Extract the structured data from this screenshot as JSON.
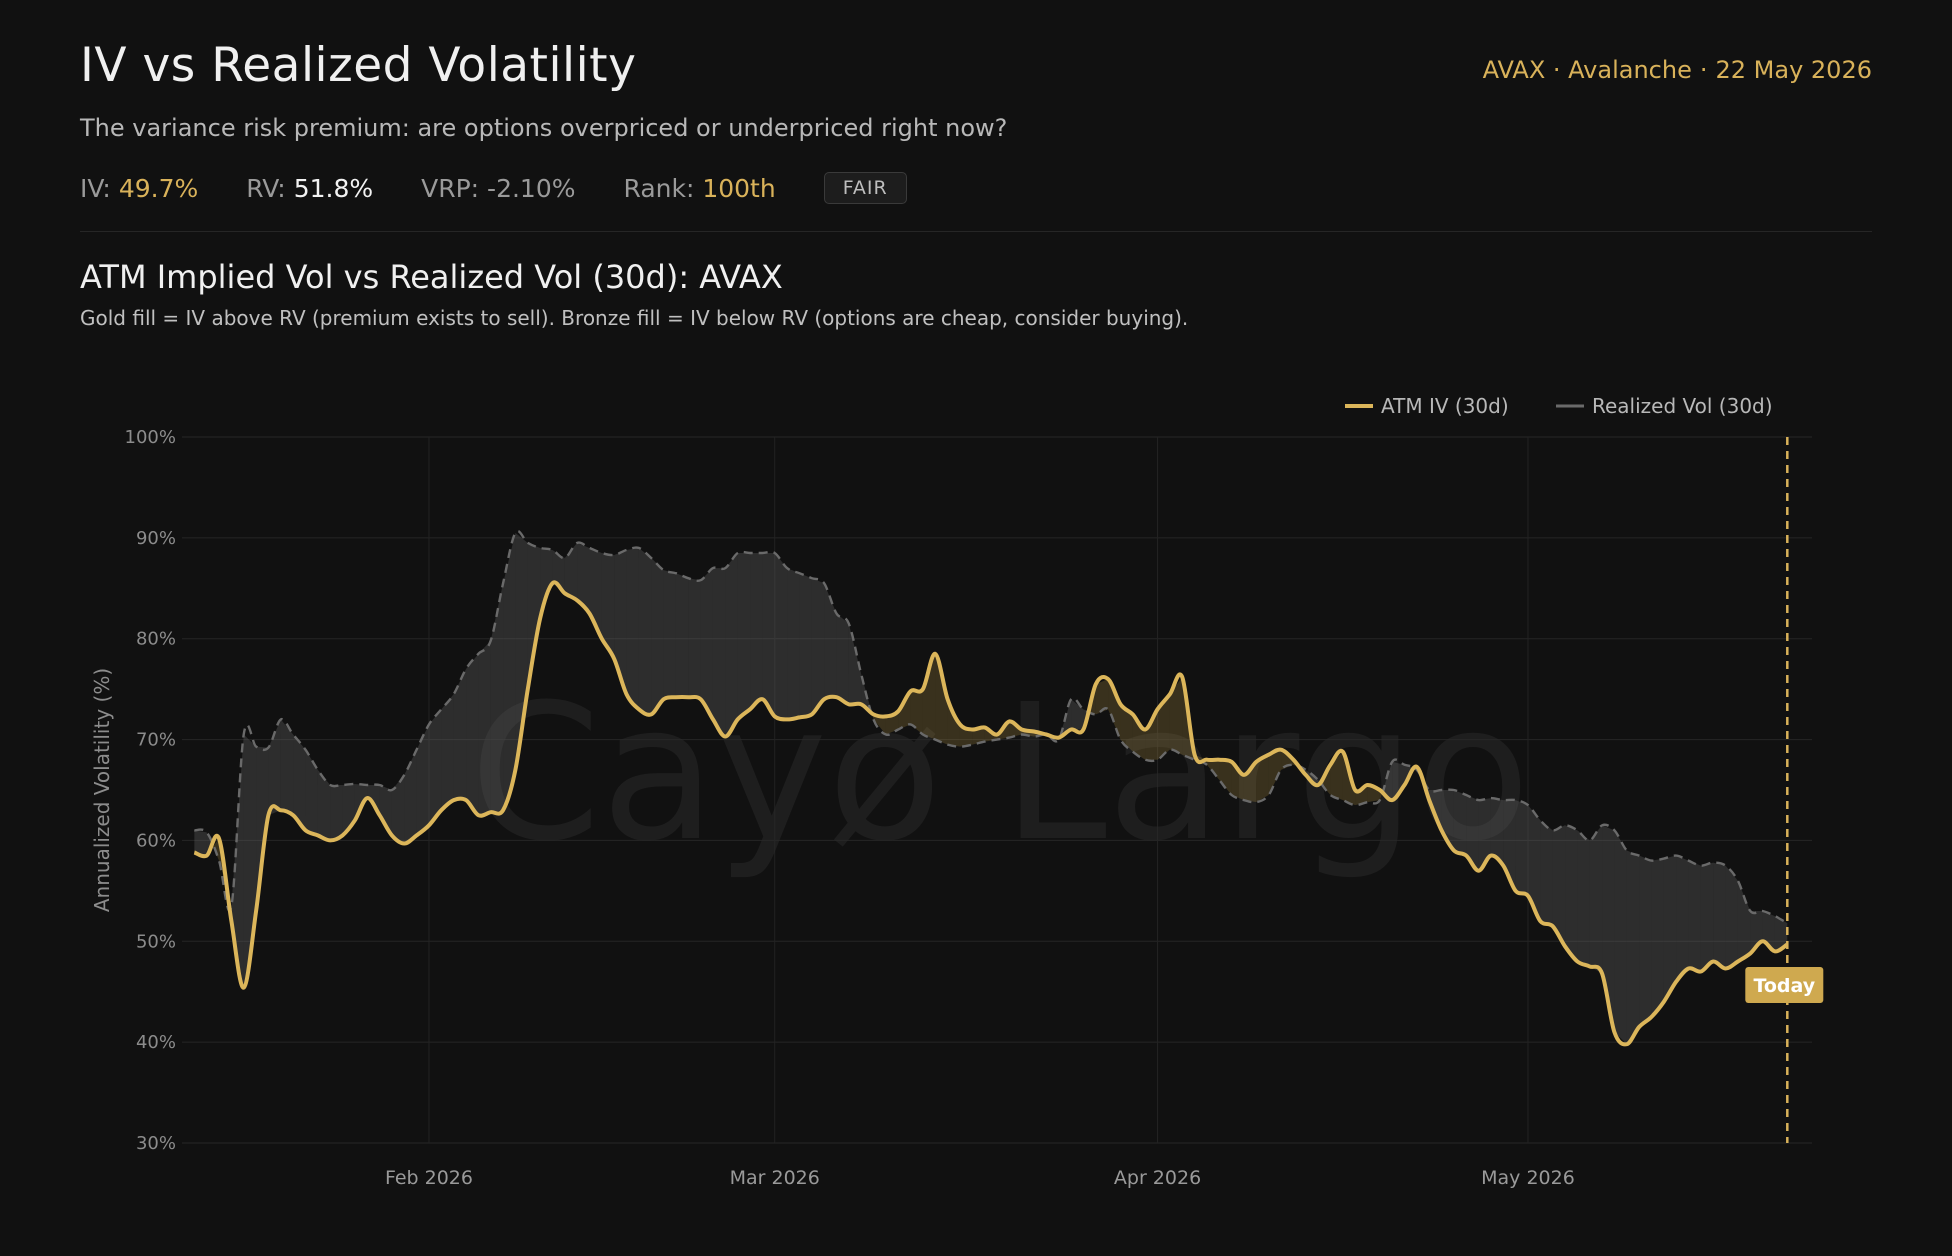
{
  "header": {
    "title": "IV vs Realized Volatility",
    "subtitle": "The variance risk premium: are options overpriced or underpriced right now?",
    "asset": "AVAX · Avalanche",
    "date": "22 May 2026"
  },
  "stats": {
    "iv_label": "IV:",
    "iv_value": "49.7%",
    "rv_label": "RV:",
    "rv_value": "51.8%",
    "vrp_label": "VRP:",
    "vrp_value": "-2.10%",
    "rank_label": "Rank:",
    "rank_value": "100th",
    "badge": "FAIR"
  },
  "chart_section": {
    "title": "ATM Implied Vol vs Realized Vol (30d): AVAX",
    "description": "Gold fill = IV above RV (premium exists to sell). Bronze fill = IV below RV (options are cheap, consider buying).",
    "watermark": "Cayø Largo",
    "today_label": "Today"
  },
  "chart_data": {
    "type": "line",
    "ylabel": "Annualized Volatility (%)",
    "ylim": [
      30,
      100
    ],
    "yticks": [
      30,
      40,
      50,
      60,
      70,
      80,
      90,
      100
    ],
    "ytick_labels": [
      "30%",
      "40%",
      "50%",
      "60%",
      "70%",
      "80%",
      "90%",
      "100%"
    ],
    "xlim": [
      "2026-01-12",
      "2026-05-24"
    ],
    "xticks": [
      {
        "date": "2026-02-01",
        "label": "Feb 2026"
      },
      {
        "date": "2026-03-01",
        "label": "Mar 2026"
      },
      {
        "date": "2026-04-01",
        "label": "Apr 2026"
      },
      {
        "date": "2026-05-01",
        "label": "May 2026"
      }
    ],
    "grid": true,
    "legend_position": "top-right",
    "today_marker": "2026-05-22",
    "colors": {
      "iv": "#dcb65a",
      "rv": "#6a6a6a",
      "fill_gold": "#c9a24a",
      "fill_grey": "#6a6a6a"
    },
    "series": [
      {
        "name": "ATM IV (30d)",
        "points": [
          [
            "2026-01-13",
            58.8
          ],
          [
            "2026-01-14",
            58.5
          ],
          [
            "2026-01-15",
            60.2
          ],
          [
            "2026-01-16",
            52.0
          ],
          [
            "2026-01-17",
            45.4
          ],
          [
            "2026-01-18",
            53.0
          ],
          [
            "2026-01-19",
            62.5
          ],
          [
            "2026-01-20",
            63.0
          ],
          [
            "2026-01-21",
            62.5
          ],
          [
            "2026-01-22",
            61.0
          ],
          [
            "2026-01-23",
            60.5
          ],
          [
            "2026-01-24",
            60.0
          ],
          [
            "2026-01-25",
            60.5
          ],
          [
            "2026-01-26",
            62.0
          ],
          [
            "2026-01-27",
            64.2
          ],
          [
            "2026-01-28",
            62.5
          ],
          [
            "2026-01-29",
            60.5
          ],
          [
            "2026-01-30",
            59.7
          ],
          [
            "2026-01-31",
            60.5
          ],
          [
            "2026-02-01",
            61.5
          ],
          [
            "2026-02-02",
            63.0
          ],
          [
            "2026-02-03",
            64.0
          ],
          [
            "2026-02-04",
            64.0
          ],
          [
            "2026-02-05",
            62.5
          ],
          [
            "2026-02-06",
            62.8
          ],
          [
            "2026-02-07",
            63.0
          ],
          [
            "2026-02-08",
            67.0
          ],
          [
            "2026-02-09",
            75.0
          ],
          [
            "2026-02-10",
            82.0
          ],
          [
            "2026-02-11",
            85.5
          ],
          [
            "2026-02-12",
            84.5
          ],
          [
            "2026-02-13",
            83.8
          ],
          [
            "2026-02-14",
            82.5
          ],
          [
            "2026-02-15",
            80.0
          ],
          [
            "2026-02-16",
            78.0
          ],
          [
            "2026-02-17",
            74.5
          ],
          [
            "2026-02-18",
            73.0
          ],
          [
            "2026-02-19",
            72.5
          ],
          [
            "2026-02-20",
            74.0
          ],
          [
            "2026-02-21",
            74.2
          ],
          [
            "2026-02-22",
            74.2
          ],
          [
            "2026-02-23",
            74.0
          ],
          [
            "2026-02-24",
            72.0
          ],
          [
            "2026-02-25",
            70.3
          ],
          [
            "2026-02-26",
            72.0
          ],
          [
            "2026-02-27",
            73.0
          ],
          [
            "2026-02-28",
            74.0
          ],
          [
            "2026-03-01",
            72.3
          ],
          [
            "2026-03-02",
            72.0
          ],
          [
            "2026-03-03",
            72.2
          ],
          [
            "2026-03-04",
            72.5
          ],
          [
            "2026-03-05",
            74.0
          ],
          [
            "2026-03-06",
            74.2
          ],
          [
            "2026-03-07",
            73.5
          ],
          [
            "2026-03-08",
            73.5
          ],
          [
            "2026-03-09",
            72.5
          ],
          [
            "2026-03-10",
            72.3
          ],
          [
            "2026-03-11",
            72.8
          ],
          [
            "2026-03-12",
            74.8
          ],
          [
            "2026-03-13",
            75.0
          ],
          [
            "2026-03-14",
            78.5
          ],
          [
            "2026-03-15",
            74.0
          ],
          [
            "2026-03-16",
            71.5
          ],
          [
            "2026-03-17",
            71.0
          ],
          [
            "2026-03-18",
            71.2
          ],
          [
            "2026-03-19",
            70.5
          ],
          [
            "2026-03-20",
            71.8
          ],
          [
            "2026-03-21",
            71.0
          ],
          [
            "2026-03-22",
            70.8
          ],
          [
            "2026-03-23",
            70.5
          ],
          [
            "2026-03-24",
            70.2
          ],
          [
            "2026-03-25",
            71.0
          ],
          [
            "2026-03-26",
            71.0
          ],
          [
            "2026-03-27",
            75.5
          ],
          [
            "2026-03-28",
            76.0
          ],
          [
            "2026-03-29",
            73.5
          ],
          [
            "2026-03-30",
            72.5
          ],
          [
            "2026-03-31",
            71.0
          ],
          [
            "2026-04-01",
            73.0
          ],
          [
            "2026-04-02",
            74.5
          ],
          [
            "2026-04-03",
            76.2
          ],
          [
            "2026-04-04",
            68.5
          ],
          [
            "2026-04-05",
            68.0
          ],
          [
            "2026-04-06",
            68.0
          ],
          [
            "2026-04-07",
            67.8
          ],
          [
            "2026-04-08",
            66.5
          ],
          [
            "2026-04-09",
            67.8
          ],
          [
            "2026-04-10",
            68.5
          ],
          [
            "2026-04-11",
            69.0
          ],
          [
            "2026-04-12",
            68.0
          ],
          [
            "2026-04-13",
            66.5
          ],
          [
            "2026-04-14",
            65.5
          ],
          [
            "2026-04-15",
            67.5
          ],
          [
            "2026-04-16",
            68.8
          ],
          [
            "2026-04-17",
            65.0
          ],
          [
            "2026-04-18",
            65.5
          ],
          [
            "2026-04-19",
            65.0
          ],
          [
            "2026-04-20",
            64.0
          ],
          [
            "2026-04-21",
            65.5
          ],
          [
            "2026-04-22",
            67.3
          ],
          [
            "2026-04-23",
            64.0
          ],
          [
            "2026-04-24",
            61.0
          ],
          [
            "2026-04-25",
            59.0
          ],
          [
            "2026-04-26",
            58.5
          ],
          [
            "2026-04-27",
            57.0
          ],
          [
            "2026-04-28",
            58.5
          ],
          [
            "2026-04-29",
            57.5
          ],
          [
            "2026-04-30",
            55.0
          ],
          [
            "2026-05-01",
            54.5
          ],
          [
            "2026-05-02",
            52.0
          ],
          [
            "2026-05-03",
            51.5
          ],
          [
            "2026-05-04",
            49.5
          ],
          [
            "2026-05-05",
            48.0
          ],
          [
            "2026-05-06",
            47.5
          ],
          [
            "2026-05-07",
            46.8
          ],
          [
            "2026-05-08",
            41.0
          ],
          [
            "2026-05-09",
            39.8
          ],
          [
            "2026-05-10",
            41.5
          ],
          [
            "2026-05-11",
            42.5
          ],
          [
            "2026-05-12",
            44.0
          ],
          [
            "2026-05-13",
            46.0
          ],
          [
            "2026-05-14",
            47.3
          ],
          [
            "2026-05-15",
            47.0
          ],
          [
            "2026-05-16",
            48.0
          ],
          [
            "2026-05-17",
            47.3
          ],
          [
            "2026-05-18",
            48.0
          ],
          [
            "2026-05-19",
            48.8
          ],
          [
            "2026-05-20",
            50.0
          ],
          [
            "2026-05-21",
            49.0
          ],
          [
            "2026-05-22",
            49.7
          ]
        ]
      },
      {
        "name": "Realized Vol (30d)",
        "points": [
          [
            "2026-01-13",
            61.0
          ],
          [
            "2026-01-14",
            60.8
          ],
          [
            "2026-01-15",
            58.0
          ],
          [
            "2026-01-16",
            53.5
          ],
          [
            "2026-01-17",
            70.5
          ],
          [
            "2026-01-18",
            69.3
          ],
          [
            "2026-01-19",
            69.2
          ],
          [
            "2026-01-20",
            72.0
          ],
          [
            "2026-01-21",
            70.5
          ],
          [
            "2026-01-22",
            69.0
          ],
          [
            "2026-01-23",
            67.0
          ],
          [
            "2026-01-24",
            65.5
          ],
          [
            "2026-01-25",
            65.5
          ],
          [
            "2026-01-26",
            65.6
          ],
          [
            "2026-01-27",
            65.5
          ],
          [
            "2026-01-28",
            65.5
          ],
          [
            "2026-01-29",
            65.0
          ],
          [
            "2026-01-30",
            66.5
          ],
          [
            "2026-01-31",
            69.0
          ],
          [
            "2026-02-01",
            71.5
          ],
          [
            "2026-02-02",
            73.0
          ],
          [
            "2026-02-03",
            74.5
          ],
          [
            "2026-02-04",
            77.0
          ],
          [
            "2026-02-05",
            78.5
          ],
          [
            "2026-02-06",
            79.8
          ],
          [
            "2026-02-07",
            85.5
          ],
          [
            "2026-02-08",
            90.5
          ],
          [
            "2026-02-09",
            89.5
          ],
          [
            "2026-02-10",
            89.0
          ],
          [
            "2026-02-11",
            88.8
          ],
          [
            "2026-02-12",
            88.0
          ],
          [
            "2026-02-13",
            89.5
          ],
          [
            "2026-02-14",
            89.0
          ],
          [
            "2026-02-15",
            88.5
          ],
          [
            "2026-02-16",
            88.3
          ],
          [
            "2026-02-17",
            88.8
          ],
          [
            "2026-02-18",
            89.0
          ],
          [
            "2026-02-19",
            88.0
          ],
          [
            "2026-02-20",
            86.8
          ],
          [
            "2026-02-21",
            86.5
          ],
          [
            "2026-02-22",
            86.0
          ],
          [
            "2026-02-23",
            85.8
          ],
          [
            "2026-02-24",
            87.0
          ],
          [
            "2026-02-25",
            87.0
          ],
          [
            "2026-02-26",
            88.5
          ],
          [
            "2026-02-27",
            88.5
          ],
          [
            "2026-02-28",
            88.5
          ],
          [
            "2026-03-01",
            88.5
          ],
          [
            "2026-03-02",
            87.0
          ],
          [
            "2026-03-03",
            86.5
          ],
          [
            "2026-03-04",
            86.0
          ],
          [
            "2026-03-05",
            85.5
          ],
          [
            "2026-03-06",
            82.5
          ],
          [
            "2026-03-07",
            81.5
          ],
          [
            "2026-03-08",
            76.5
          ],
          [
            "2026-03-09",
            72.0
          ],
          [
            "2026-03-10",
            70.5
          ],
          [
            "2026-03-11",
            71.0
          ],
          [
            "2026-03-12",
            71.5
          ],
          [
            "2026-03-13",
            70.5
          ],
          [
            "2026-03-14",
            70.0
          ],
          [
            "2026-03-15",
            69.5
          ],
          [
            "2026-03-16",
            69.3
          ],
          [
            "2026-03-17",
            69.5
          ],
          [
            "2026-03-18",
            69.8
          ],
          [
            "2026-03-19",
            70.0
          ],
          [
            "2026-03-20",
            70.2
          ],
          [
            "2026-03-21",
            70.5
          ],
          [
            "2026-03-22",
            70.3
          ],
          [
            "2026-03-23",
            70.5
          ],
          [
            "2026-03-24",
            70.0
          ],
          [
            "2026-03-25",
            74.0
          ],
          [
            "2026-03-26",
            73.0
          ],
          [
            "2026-03-27",
            72.5
          ],
          [
            "2026-03-28",
            73.0
          ],
          [
            "2026-03-29",
            70.0
          ],
          [
            "2026-03-30",
            68.8
          ],
          [
            "2026-03-31",
            68.0
          ],
          [
            "2026-04-01",
            68.0
          ],
          [
            "2026-04-02",
            69.0
          ],
          [
            "2026-04-03",
            68.5
          ],
          [
            "2026-04-04",
            68.0
          ],
          [
            "2026-04-05",
            67.5
          ],
          [
            "2026-04-06",
            66.0
          ],
          [
            "2026-04-07",
            64.5
          ],
          [
            "2026-04-08",
            64.0
          ],
          [
            "2026-04-09",
            63.8
          ],
          [
            "2026-04-10",
            64.5
          ],
          [
            "2026-04-11",
            67.0
          ],
          [
            "2026-04-12",
            67.5
          ],
          [
            "2026-04-13",
            67.0
          ],
          [
            "2026-04-14",
            66.0
          ],
          [
            "2026-04-15",
            64.5
          ],
          [
            "2026-04-16",
            64.0
          ],
          [
            "2026-04-17",
            63.5
          ],
          [
            "2026-04-18",
            63.8
          ],
          [
            "2026-04-19",
            64.0
          ],
          [
            "2026-04-20",
            67.8
          ],
          [
            "2026-04-21",
            67.5
          ],
          [
            "2026-04-22",
            67.0
          ],
          [
            "2026-04-23",
            65.0
          ],
          [
            "2026-04-24",
            65.0
          ],
          [
            "2026-04-25",
            65.0
          ],
          [
            "2026-04-26",
            64.5
          ],
          [
            "2026-04-27",
            64.0
          ],
          [
            "2026-04-28",
            64.2
          ],
          [
            "2026-04-29",
            64.0
          ],
          [
            "2026-04-30",
            64.0
          ],
          [
            "2026-05-01",
            63.5
          ],
          [
            "2026-05-02",
            62.0
          ],
          [
            "2026-05-03",
            61.0
          ],
          [
            "2026-05-04",
            61.5
          ],
          [
            "2026-05-05",
            61.0
          ],
          [
            "2026-05-06",
            60.0
          ],
          [
            "2026-05-07",
            61.5
          ],
          [
            "2026-05-08",
            61.0
          ],
          [
            "2026-05-09",
            59.0
          ],
          [
            "2026-05-10",
            58.5
          ],
          [
            "2026-05-11",
            58.0
          ],
          [
            "2026-05-12",
            58.2
          ],
          [
            "2026-05-13",
            58.5
          ],
          [
            "2026-05-14",
            58.0
          ],
          [
            "2026-05-15",
            57.5
          ],
          [
            "2026-05-16",
            57.8
          ],
          [
            "2026-05-17",
            57.5
          ],
          [
            "2026-05-18",
            56.0
          ],
          [
            "2026-05-19",
            53.0
          ],
          [
            "2026-05-20",
            53.0
          ],
          [
            "2026-05-21",
            52.5
          ],
          [
            "2026-05-22",
            51.8
          ]
        ]
      }
    ]
  }
}
